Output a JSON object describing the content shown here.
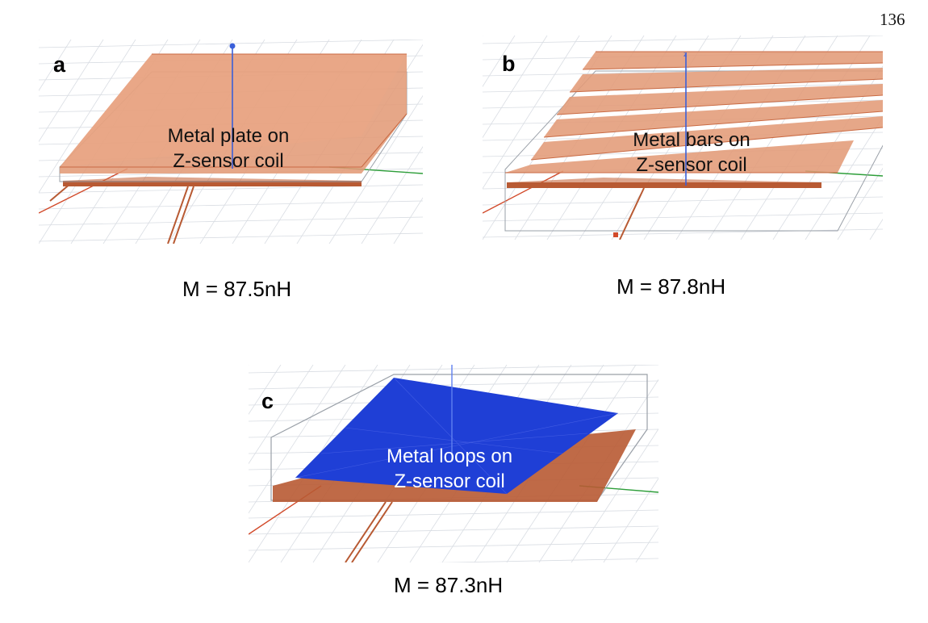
{
  "page_number": "136",
  "panels": [
    {
      "letter": "a",
      "label_line1": "Metal plate on",
      "label_line2": "Z-sensor coil",
      "caption": "M = 87.5nH",
      "top_layer": "metal-plate",
      "top_color": "#e39b78"
    },
    {
      "letter": "b",
      "label_line1": "Metal bars on",
      "label_line2": "Z-sensor coil",
      "caption": "M = 87.8nH",
      "top_layer": "metal-bars",
      "top_color": "#e39b78"
    },
    {
      "letter": "c",
      "label_line1": "Metal loops on",
      "label_line2": "Z-sensor coil",
      "caption": "M = 87.3nH",
      "top_layer": "metal-loops",
      "top_color": "#1f3fd6"
    }
  ],
  "colors": {
    "coil": "#b85a33",
    "plate": "#e39b78",
    "plate_edge": "#c96a43",
    "loops": "#1f3fd6",
    "axis_z": "#3a5fd9",
    "axis_x": "#2e9e3a",
    "axis_y": "#d24a2a",
    "grid": "#d9dde3"
  }
}
